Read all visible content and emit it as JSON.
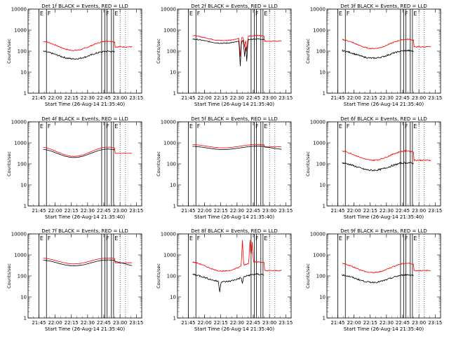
{
  "x_ticks": [
    "21:45",
    "22:00",
    "22:15",
    "22:30",
    "22:45",
    "23:00",
    "23:15"
  ],
  "y_ticks": [
    "1",
    "10",
    "100",
    "1000",
    "10000"
  ],
  "ylabel": "Counts/sec",
  "xlabel": "Start Time (26-Aug-14 21:35:40)",
  "colors": {
    "events": "#000000",
    "lld": "#ff0000"
  },
  "chart_data": [
    {
      "type": "line",
      "title": "Det 1f BLACK = Events, RED = LLD",
      "xlabel": "Start Time (26-Aug-14 21:35:40)",
      "ylabel": "Counts/sec",
      "ylim": [
        1,
        10000
      ],
      "yscale": "log",
      "lld": {
        "base": 180,
        "amp": 0.22,
        "flat_tail": 160,
        "noise": 0.05,
        "spikes": []
      },
      "events": {
        "base": 65,
        "amp": 0.18,
        "tail_drop": 0.5,
        "noise": 0.07,
        "spikes": []
      },
      "vlines": [
        "22:52"
      ],
      "vlabels": [
        [
          "21:45",
          "E"
        ],
        [
          "21:52",
          "F"
        ],
        [
          "22:46",
          "F"
        ],
        [
          "22:54",
          "E"
        ]
      ]
    },
    {
      "type": "line",
      "title": "Det 2f BLACK = Events, RED = LLD",
      "xlabel": "Start Time (26-Aug-14 21:35:40)",
      "ylabel": "Counts/sec",
      "ylim": [
        1,
        10000
      ],
      "yscale": "log",
      "lld": {
        "base": 420,
        "amp": 0.12,
        "flat_tail": 300,
        "noise": 0.04,
        "spikes": [
          [
            "22:33",
            -0.9
          ],
          [
            "22:37",
            -0.5
          ],
          [
            "22:39",
            -0.7
          ]
        ]
      },
      "events": {
        "base": 300,
        "amp": 0.1,
        "tail_drop": 0.8,
        "noise": 0.05,
        "spikes": [
          [
            "22:33",
            -1.2
          ],
          [
            "22:37",
            -0.8
          ],
          [
            "22:39",
            -1.0
          ]
        ]
      },
      "vlines": [
        "22:52"
      ],
      "vlabels": [
        [
          "21:45",
          "E"
        ],
        [
          "21:52",
          "F"
        ],
        [
          "22:46",
          "F"
        ],
        [
          "22:54",
          "E"
        ]
      ]
    },
    {
      "type": "line",
      "title": "Det 3f BLACK = Events, RED = LLD",
      "xlabel": "Start Time (26-Aug-14 21:35:40)",
      "ylabel": "Counts/sec",
      "ylim": [
        1,
        10000
      ],
      "yscale": "log",
      "lld": {
        "base": 220,
        "amp": 0.22,
        "flat_tail": 160,
        "noise": 0.05,
        "spikes": []
      },
      "events": {
        "base": 70,
        "amp": 0.18,
        "tail_drop": 0.5,
        "noise": 0.07,
        "spikes": []
      },
      "vlines": [
        "22:52"
      ],
      "vlabels": [
        [
          "21:45",
          "E"
        ],
        [
          "21:52",
          "F"
        ],
        [
          "22:46",
          "F"
        ],
        [
          "22:54",
          "E"
        ]
      ]
    },
    {
      "type": "line",
      "title": "Det 4f BLACK = Events, RED = LLD",
      "xlabel": "Start Time (26-Aug-14 21:35:40)",
      "ylabel": "Counts/sec",
      "ylim": [
        1,
        10000
      ],
      "yscale": "log",
      "lld": {
        "base": 380,
        "amp": 0.22,
        "flat_tail": 320,
        "noise": 0.01,
        "spikes": []
      },
      "events": {
        "base": 320,
        "amp": 0.2,
        "tail_drop": 0.85,
        "noise": 0.01,
        "spikes": []
      },
      "vlines": [
        "22:52"
      ],
      "vlabels": [
        [
          "21:45",
          "E"
        ],
        [
          "21:52",
          "F"
        ],
        [
          "22:46",
          "F"
        ],
        [
          "22:54",
          "E"
        ]
      ]
    },
    {
      "type": "line",
      "title": "Det 5f BLACK = Events, RED = LLD",
      "xlabel": "Start Time (26-Aug-14 21:35:40)",
      "ylabel": "Counts/sec",
      "ylim": [
        1,
        10000
      ],
      "yscale": "log",
      "lld": {
        "base": 700,
        "amp": 0.08,
        "flat_tail": 650,
        "noise": 0.01,
        "spikes": []
      },
      "events": {
        "base": 580,
        "amp": 0.08,
        "tail_drop": 0.95,
        "noise": 0.01,
        "spikes": []
      },
      "vlines": [
        "22:52"
      ],
      "vlabels": [
        [
          "21:45",
          "E"
        ],
        [
          "21:52",
          "F"
        ],
        [
          "22:46",
          "F"
        ],
        [
          "22:54",
          "E"
        ]
      ]
    },
    {
      "type": "line",
      "title": "Det 6f BLACK = Events, RED = LLD",
      "xlabel": "Start Time (26-Aug-14 21:35:40)",
      "ylabel": "Counts/sec",
      "ylim": [
        1,
        10000
      ],
      "yscale": "log",
      "lld": {
        "base": 250,
        "amp": 0.22,
        "flat_tail": 150,
        "noise": 0.06,
        "spikes": []
      },
      "events": {
        "base": 75,
        "amp": 0.18,
        "tail_drop": 0.45,
        "noise": 0.08,
        "spikes": []
      },
      "vlines": [
        "22:52"
      ],
      "vlabels": [
        [
          "21:45",
          "E"
        ],
        [
          "21:52",
          "F"
        ],
        [
          "22:46",
          "F"
        ],
        [
          "22:54",
          "E"
        ]
      ]
    },
    {
      "type": "line",
      "title": "Det 7f BLACK = Events, RED = LLD",
      "xlabel": "Start Time (26-Aug-14 21:35:40)",
      "ylabel": "Counts/sec",
      "ylim": [
        1,
        10000
      ],
      "yscale": "log",
      "lld": {
        "base": 520,
        "amp": 0.14,
        "flat_tail": 420,
        "noise": 0.01,
        "spikes": []
      },
      "events": {
        "base": 420,
        "amp": 0.14,
        "tail_drop": 0.9,
        "noise": 0.01,
        "spikes": []
      },
      "vlines": [
        "22:52"
      ],
      "vlabels": [
        [
          "21:45",
          "E"
        ],
        [
          "21:52",
          "F"
        ],
        [
          "22:46",
          "F"
        ],
        [
          "22:54",
          "E"
        ]
      ]
    },
    {
      "type": "line",
      "title": "Det 8f BLACK = Events, RED = LLD",
      "xlabel": "Start Time (26-Aug-14 21:35:40)",
      "ylabel": "Counts/sec",
      "ylim": [
        1,
        10000
      ],
      "yscale": "log",
      "lld": {
        "base": 280,
        "amp": 0.22,
        "flat_tail": 180,
        "noise": 0.05,
        "spikes": [
          [
            "22:35",
            1.2
          ],
          [
            "22:42",
            1.1
          ],
          [
            "22:44",
            1.0
          ]
        ]
      },
      "events": {
        "base": 80,
        "amp": 0.18,
        "tail_drop": 0.45,
        "noise": 0.08,
        "spikes": [
          [
            "22:14",
            -0.5
          ],
          [
            "22:35",
            -0.3
          ]
        ]
      },
      "vlines": [
        "22:52"
      ],
      "vlabels": [
        [
          "21:45",
          "E"
        ],
        [
          "21:52",
          "F"
        ],
        [
          "22:46",
          "F"
        ],
        [
          "22:54",
          "E"
        ]
      ]
    },
    {
      "type": "line",
      "title": "Det 9f BLACK = Events, RED = LLD",
      "xlabel": "Start Time (26-Aug-14 21:35:40)",
      "ylabel": "Counts/sec",
      "ylim": [
        1,
        10000
      ],
      "yscale": "log",
      "lld": {
        "base": 240,
        "amp": 0.22,
        "flat_tail": 180,
        "noise": 0.05,
        "spikes": []
      },
      "events": {
        "base": 75,
        "amp": 0.18,
        "tail_drop": 0.45,
        "noise": 0.07,
        "spikes": []
      },
      "vlines": [
        "22:52"
      ],
      "vlabels": [
        [
          "21:45",
          "E"
        ],
        [
          "21:52",
          "F"
        ],
        [
          "22:46",
          "F"
        ],
        [
          "22:54",
          "E"
        ]
      ]
    }
  ]
}
